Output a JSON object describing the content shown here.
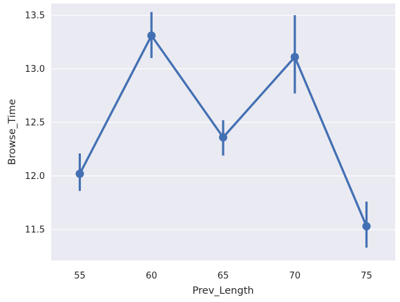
{
  "chart_data": {
    "type": "line",
    "title": "",
    "xlabel": "Prev_Length",
    "ylabel": "Browse_Time",
    "categories": [
      "55",
      "60",
      "65",
      "70",
      "75"
    ],
    "series": [
      {
        "values": [
          12.02,
          13.31,
          12.36,
          13.11,
          11.53
        ],
        "ci_low": [
          11.86,
          13.1,
          12.19,
          12.77,
          11.33
        ],
        "ci_high": [
          12.21,
          13.53,
          12.52,
          13.5,
          11.76
        ],
        "color": "#4370b3"
      }
    ],
    "ylim": [
      11.21,
      13.61
    ],
    "yticks": [
      11.5,
      12.0,
      12.5,
      13.0,
      13.5
    ],
    "ytick_labels": [
      "11.5",
      "12.0",
      "12.5",
      "13.0",
      "13.5"
    ],
    "grid": true,
    "background_color": "#eaeaf2",
    "grid_color": "#ffffff"
  }
}
